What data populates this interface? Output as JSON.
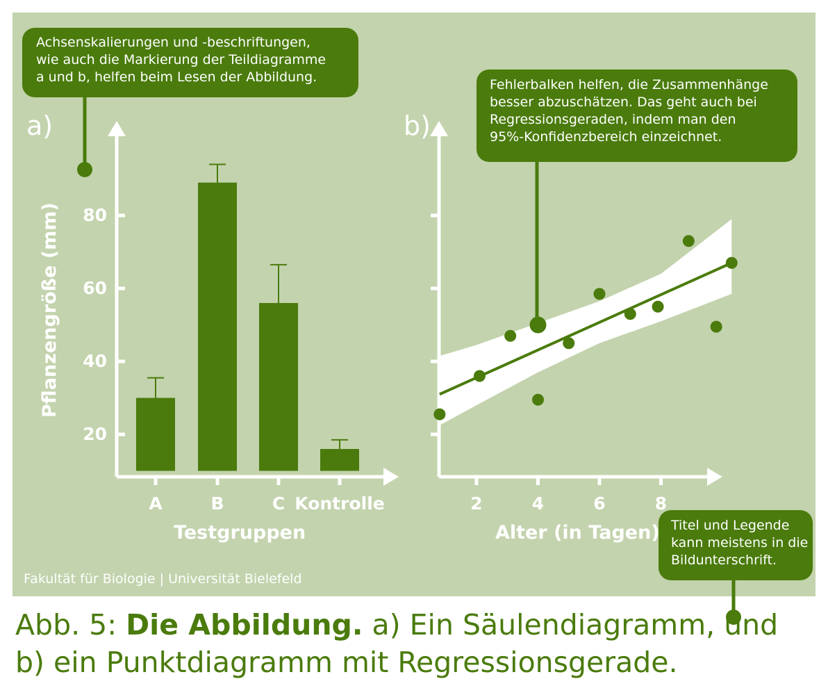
{
  "callouts": {
    "axes_note": [
      "Achsenskalierungen und -beschriftungen,",
      "wie auch die Markierung der Teildiagramme",
      "a und b, helfen beim Lesen der Abbildung."
    ],
    "errorbars_note": [
      "Fehlerbalken helfen, die Zusammenhänge",
      "besser abzuschätzen. Das geht auch bei",
      "Regressionsgeraden, indem man den",
      "95%-Konfidenzbereich einzeichnet."
    ],
    "legend_note": [
      "Titel und Legende",
      "kann meistens in die",
      "Bildunterschrift."
    ]
  },
  "credit": "Fakultät für Biologie | Universität Bielefeld",
  "caption": {
    "prefix": "Abb. 5: ",
    "title": "Die Abbildung.",
    "text_line1": " a) Ein Säulendiagramm, und",
    "line2": "b) ein Punktdiagramm mit Regressionsgerade."
  },
  "colors": {
    "background": "#c3d3ad",
    "accent": "#4a7b0c",
    "axis": "#ffffff",
    "band": "#ffffff"
  },
  "chart_data": [
    {
      "type": "bar",
      "panel_label": "a)",
      "categories": [
        "A",
        "B",
        "C",
        "Kontrolle"
      ],
      "values": [
        30,
        89,
        56,
        16
      ],
      "errors": [
        [
          24,
          35.5
        ],
        [
          84.5,
          94
        ],
        [
          45.5,
          66.5
        ],
        [
          13.5,
          18.5
        ]
      ],
      "xlabel": "Testgruppen",
      "ylabel": "Pflanzengröße (mm)",
      "yticks": [
        20,
        40,
        60,
        80
      ],
      "ylim": [
        10,
        100
      ],
      "grid": false
    },
    {
      "type": "scatter",
      "panel_label": "b)",
      "xlabel": "Alter (in Tagen)",
      "xticks": [
        2,
        4,
        6,
        8
      ],
      "xlim": [
        1,
        10
      ],
      "points": [
        [
          0.8,
          25.5
        ],
        [
          2.1,
          36
        ],
        [
          3.1,
          47
        ],
        [
          4.0,
          29.5
        ],
        [
          5.0,
          45
        ],
        [
          6.0,
          58.5
        ],
        [
          7.0,
          53
        ],
        [
          7.9,
          55
        ],
        [
          8.9,
          73
        ],
        [
          9.8,
          49.5
        ],
        [
          10.3,
          67
        ]
      ],
      "highlight_point": [
        4.0,
        50
      ],
      "regression": {
        "x": [
          0.8,
          10.3
        ],
        "y": [
          31,
          67
        ]
      },
      "confidence_band": {
        "x": [
          0.8,
          2,
          4,
          6,
          8,
          10.3
        ],
        "upper": [
          41.5,
          44.5,
          50.5,
          56.5,
          64,
          79
        ],
        "lower": [
          22.5,
          28,
          37,
          45,
          51,
          58.5
        ]
      },
      "grid": false
    }
  ]
}
